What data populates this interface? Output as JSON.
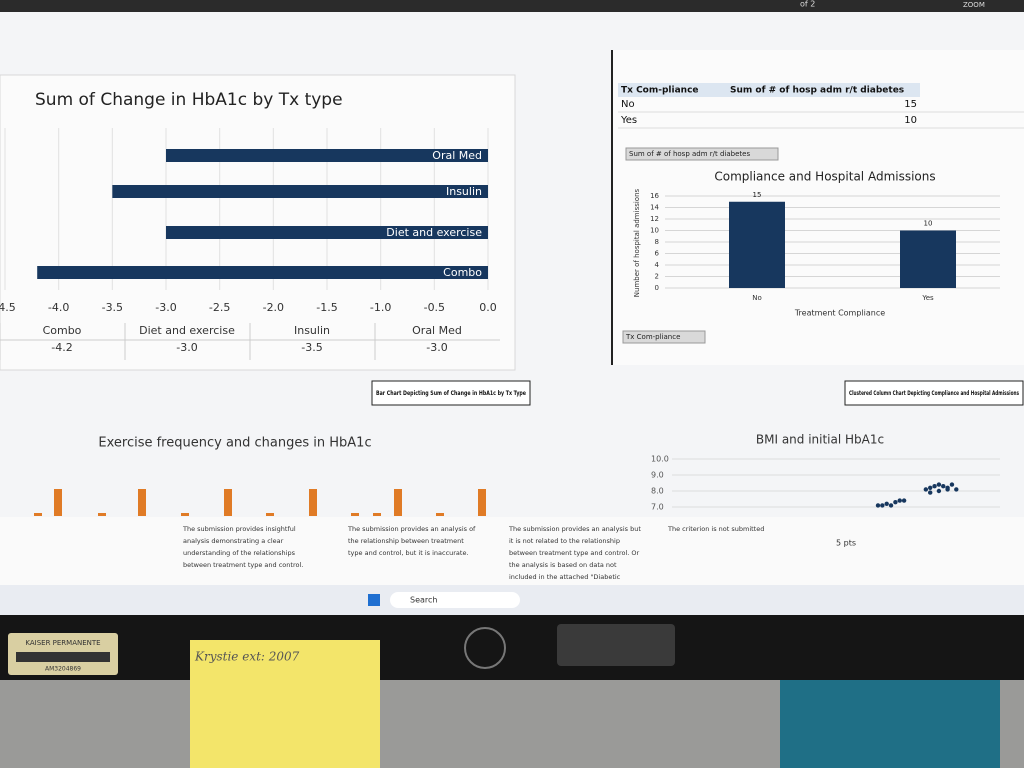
{
  "top_bar": {
    "page_of": "of 2",
    "zoom": "ZOOM"
  },
  "chart_data": [
    {
      "type": "barh",
      "title": "Sum of Change in HbA1c by Tx type",
      "categories": [
        "Oral Med",
        "Insulin",
        "Diet and exercise",
        "Combo"
      ],
      "values": [
        -3.0,
        -3.5,
        -3.0,
        -4.2
      ],
      "value_labels": [
        "-3.0",
        "-3.5",
        "-3.0",
        "-4.2"
      ],
      "color": "#17375e",
      "xlim": [
        -4.5,
        0
      ],
      "xticks": [
        {
          "value": -4.5,
          "label": "-4.5"
        },
        {
          "value": -4,
          "label": "-4.0"
        },
        -3.5,
        {
          "value": -3,
          "label": "-3.0"
        },
        -2.5,
        {
          "value": -2,
          "label": "-2.0"
        },
        -1.5,
        {
          "value": -1,
          "label": "-1.0"
        },
        -0.5,
        {
          "value": 0,
          "label": "0.0"
        }
      ]
    },
    {
      "type": "column",
      "title": "Compliance and Hospital Admissions",
      "field_button": "Sum of # of hosp adm r/t diabetes",
      "axis_button": "Tx Com-pliance",
      "ylabel": "Number of hospital admissions",
      "xlabel": "Treatment Compliance",
      "categories": [
        "No",
        "Yes"
      ],
      "values": [
        15,
        10
      ],
      "color": "#17375e",
      "ylim": [
        0,
        16
      ],
      "yticks": [
        0,
        2,
        4,
        6,
        8,
        10,
        12,
        14,
        16
      ],
      "grid": true
    },
    {
      "type": "bar",
      "title": "Exercise frequency and changes in HbA1c",
      "values": [
        0.1,
        0.9,
        0.1,
        0.9,
        0.1,
        0.9,
        0.1,
        0.9,
        0.1,
        0.1,
        0.9,
        0.1,
        0.9
      ],
      "ylim": [
        0,
        1
      ],
      "color": "#e07b26"
    },
    {
      "type": "scatter",
      "title": "BMI and initial HbA1c",
      "x": [
        0.0,
        0.05,
        0.1,
        0.15,
        0.2,
        0.25,
        0.3,
        0.55,
        0.6,
        0.65,
        0.7,
        0.75,
        0.8,
        0.85,
        0.9,
        0.6,
        0.7,
        0.8
      ],
      "y": [
        7.1,
        7.1,
        7.2,
        7.1,
        7.3,
        7.4,
        7.4,
        8.1,
        8.2,
        8.3,
        8.4,
        8.3,
        8.2,
        8.4,
        8.1,
        7.9,
        8.0,
        8.1
      ],
      "xlim": [
        0,
        1
      ],
      "ylim": [
        7,
        10
      ],
      "yticks": [
        {
          "value": 7,
          "label": "7.0"
        },
        {
          "value": 8,
          "label": "8.0"
        },
        {
          "value": 9,
          "label": "9.0"
        },
        {
          "value": 10,
          "label": "10.0"
        }
      ],
      "color": "#17375e",
      "grid": true
    }
  ],
  "pivot_table": {
    "headers": [
      "Tx Com-pliance",
      "Sum of # of hosp adm r/t diabetes"
    ],
    "rows": [
      [
        "No",
        15
      ],
      [
        "Yes",
        10
      ]
    ]
  },
  "captions": [
    "Bar Chart Depicting Sum of Change in HbA1c by Tx Type",
    "Clustered Column Chart Depicting Compliance and Hospital Admissions"
  ],
  "rubric": {
    "cells": [
      [
        "The submission provides insightful",
        "analysis demonstrating a clear",
        "understanding of the relationships",
        "between treatment type and control."
      ],
      [
        "The submission provides an analysis of",
        "the relationship between treatment",
        "type and control, but it is inaccurate."
      ],
      [
        "The submission provides an analysis but",
        "it is not related to the relationship",
        "between treatment type and control. Or",
        "the analysis is based on data not",
        "included in the attached \"Diabetic"
      ],
      [
        "The criterion is not submitted"
      ]
    ],
    "points": "5 pts"
  },
  "taskbar": {
    "search": "Search"
  },
  "desk": {
    "badge": "KAISER PERMANENTE",
    "badge_id": "AM3204869",
    "sticky_note": "Krystie ext: 2007"
  }
}
